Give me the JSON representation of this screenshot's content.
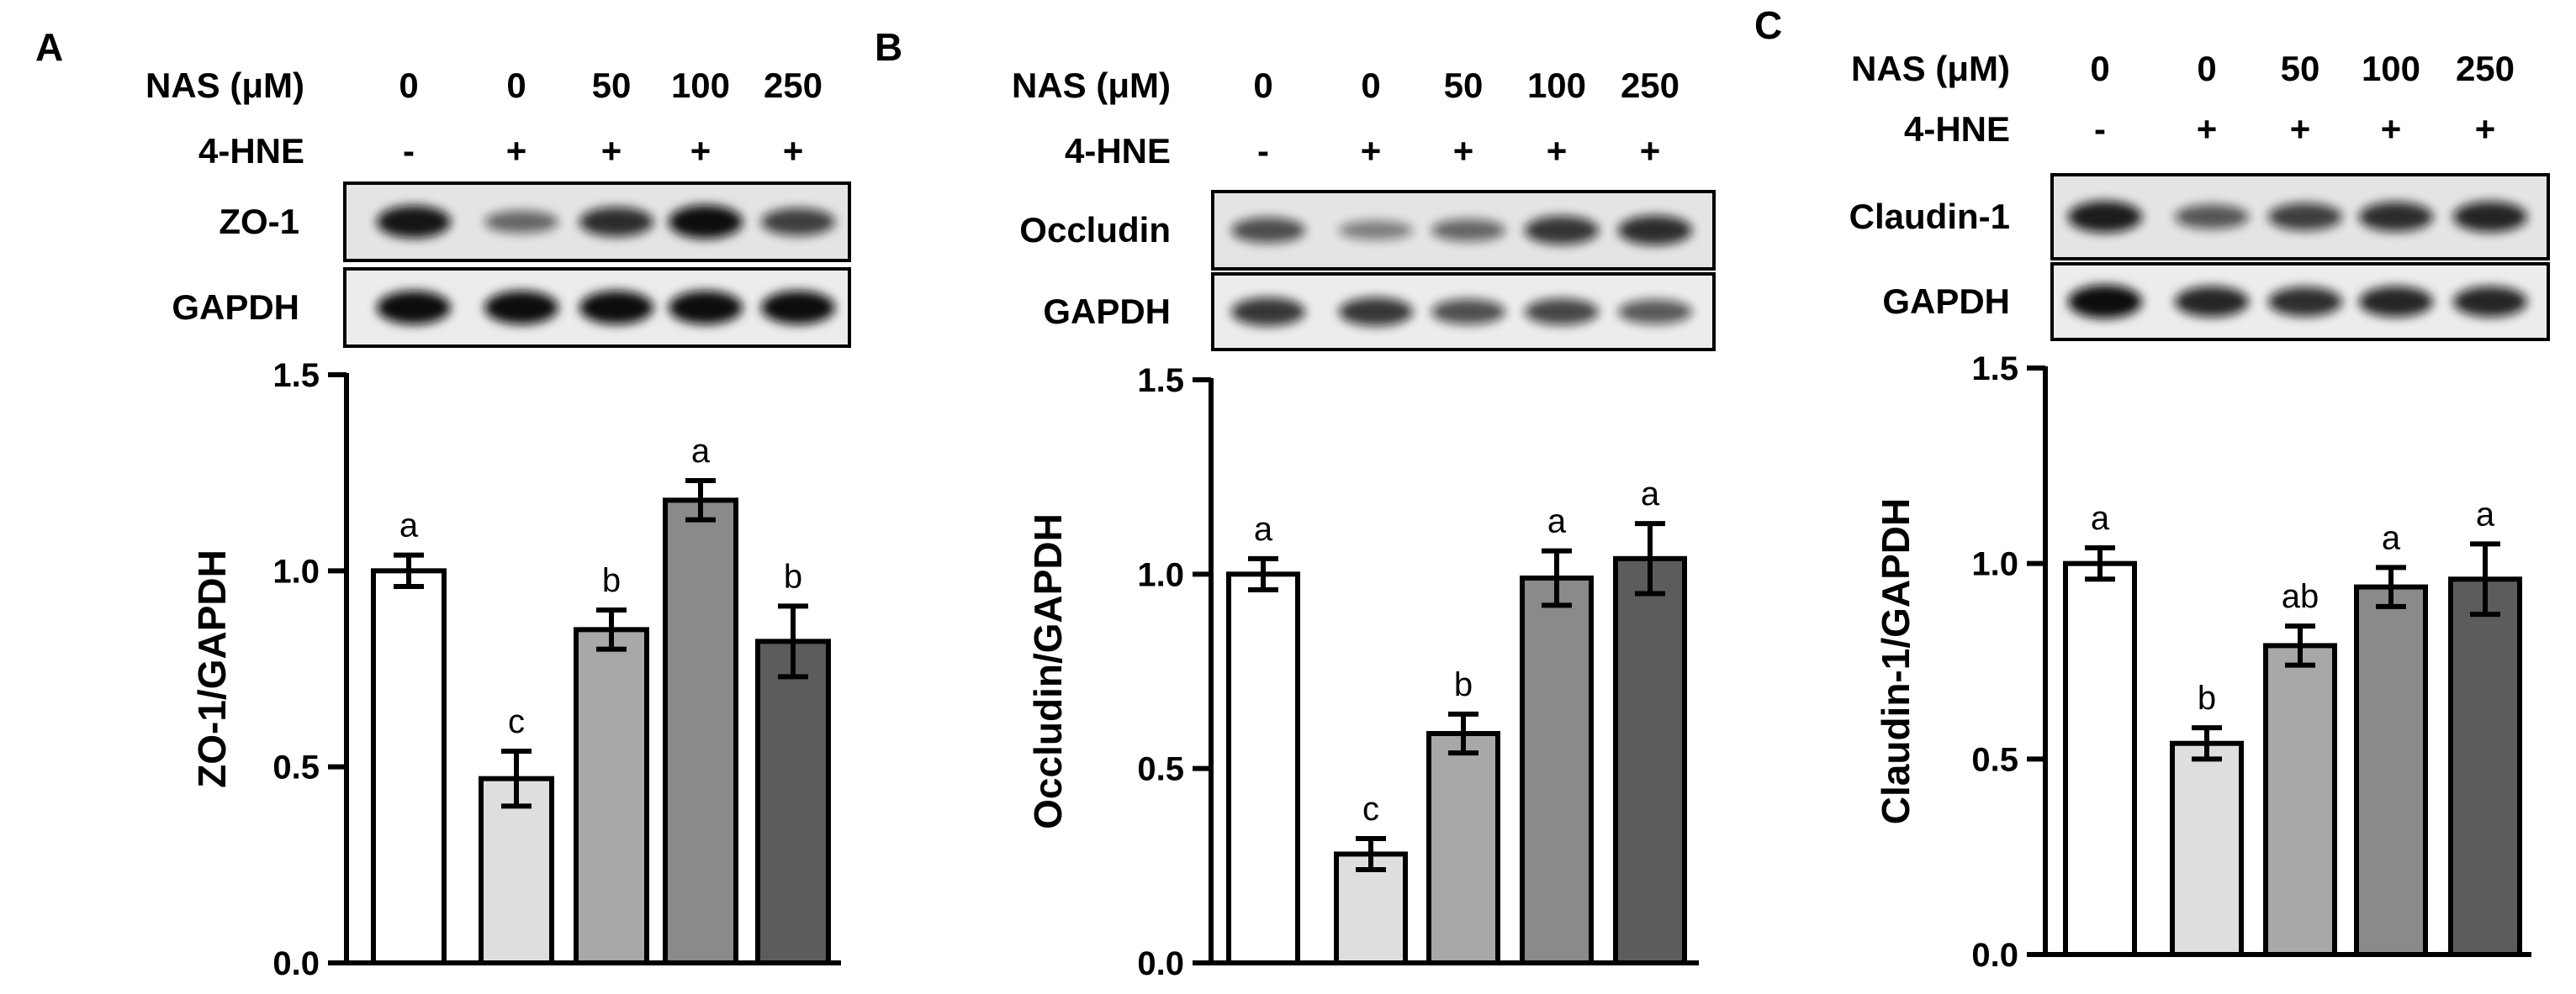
{
  "chart_data": [
    {
      "type": "bar",
      "panel": "A",
      "row_labels": {
        "nas": "NAS (μM)",
        "hne": "4-HNE"
      },
      "nas_values": [
        "0",
        "0",
        "50",
        "100",
        "250"
      ],
      "hne_values": [
        "-",
        "+",
        "+",
        "+",
        "+"
      ],
      "blot_labels": [
        "ZO-1",
        "GAPDH"
      ],
      "blot_bands": [
        [
          0.95,
          0.45,
          0.8,
          1.0,
          0.7
        ],
        [
          1.0,
          1.0,
          1.0,
          1.0,
          1.0
        ]
      ],
      "ylabel": "ZO-1/GAPDH",
      "ylim": [
        0,
        1.5
      ],
      "yticks": [
        "0.0",
        "0.5",
        "1.0",
        "1.5"
      ],
      "values": [
        1.0,
        0.47,
        0.85,
        1.18,
        0.82
      ],
      "errors": [
        0.04,
        0.07,
        0.05,
        0.05,
        0.09
      ],
      "sig_letters": [
        "a",
        "c",
        "b",
        "a",
        "b"
      ],
      "bar_colors": [
        "#ffffff",
        "#dedede",
        "#a8a8a8",
        "#8a8a8a",
        "#5c5c5c"
      ]
    },
    {
      "type": "bar",
      "panel": "B",
      "row_labels": {
        "nas": "NAS (μM)",
        "hne": "4-HNE"
      },
      "nas_values": [
        "0",
        "0",
        "50",
        "100",
        "250"
      ],
      "hne_values": [
        "-",
        "+",
        "+",
        "+",
        "+"
      ],
      "blot_labels": [
        "Occludin",
        "GAPDH"
      ],
      "blot_bands": [
        [
          0.6,
          0.3,
          0.45,
          0.75,
          0.8
        ],
        [
          0.75,
          0.75,
          0.6,
          0.65,
          0.55
        ]
      ],
      "ylabel": "Occludin/GAPDH",
      "ylim": [
        0,
        1.5
      ],
      "yticks": [
        "0.0",
        "0.5",
        "1.0",
        "1.5"
      ],
      "values": [
        1.0,
        0.28,
        0.59,
        0.99,
        1.04
      ],
      "errors": [
        0.04,
        0.04,
        0.05,
        0.07,
        0.09
      ],
      "sig_letters": [
        "a",
        "c",
        "b",
        "a",
        "a"
      ],
      "bar_colors": [
        "#ffffff",
        "#dedede",
        "#a8a8a8",
        "#8a8a8a",
        "#5c5c5c"
      ]
    },
    {
      "type": "bar",
      "panel": "C",
      "row_labels": {
        "nas": "NAS (μM)",
        "hne": "4-HNE"
      },
      "nas_values": [
        "0",
        "0",
        "50",
        "100",
        "250"
      ],
      "hne_values": [
        "-",
        "+",
        "+",
        "+",
        "+"
      ],
      "blot_labels": [
        "Claudin-1",
        "GAPDH"
      ],
      "blot_bands": [
        [
          0.9,
          0.55,
          0.7,
          0.8,
          0.85
        ],
        [
          1.0,
          0.85,
          0.8,
          0.85,
          0.85
        ]
      ],
      "ylabel": "Claudin-1/GAPDH",
      "ylim": [
        0,
        1.5
      ],
      "yticks": [
        "0.0",
        "0.5",
        "1.0",
        "1.5"
      ],
      "values": [
        1.0,
        0.54,
        0.79,
        0.94,
        0.96
      ],
      "errors": [
        0.04,
        0.04,
        0.05,
        0.05,
        0.09
      ],
      "sig_letters": [
        "a",
        "b",
        "ab",
        "a",
        "a"
      ],
      "bar_colors": [
        "#ffffff",
        "#dedede",
        "#a8a8a8",
        "#8a8a8a",
        "#5c5c5c"
      ]
    }
  ]
}
